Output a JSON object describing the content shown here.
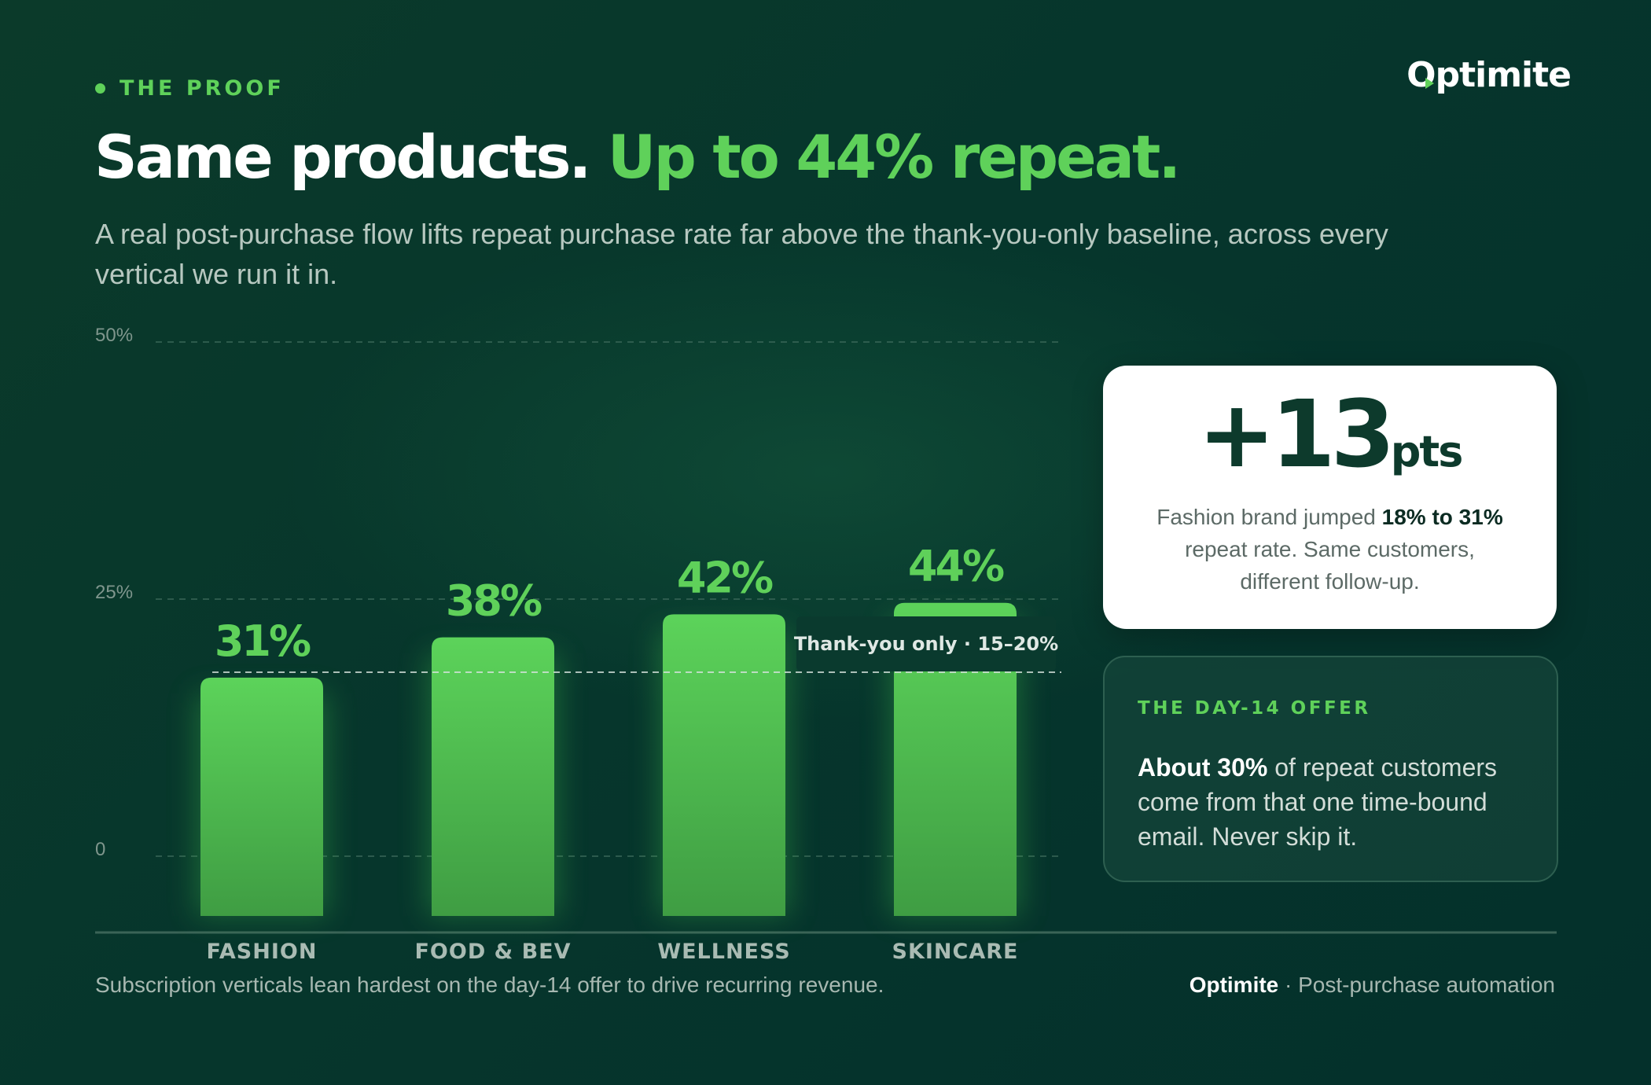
{
  "header": {
    "eyebrow": "THE PROOF",
    "logo": "Optimite",
    "title_white": "Same products.",
    "title_accent": "Up to 44% repeat.",
    "subtitle": "A real post-purchase flow lifts repeat purchase rate far above the thank-you-only baseline, across every vertical we run it in."
  },
  "colors": {
    "accent": "#5fd15a",
    "background": "#06362c",
    "card": "#ffffff",
    "text_dark": "#0d3a2c"
  },
  "chart_data": {
    "type": "bar",
    "categories": [
      "FASHION",
      "FOOD & BEV",
      "WELLNESS",
      "SKINCARE"
    ],
    "values": [
      31,
      38,
      42,
      44
    ],
    "data_labels": [
      "31%",
      "38%",
      "42%",
      "44%"
    ],
    "y_ticks": [
      {
        "value": 0,
        "label": "0"
      },
      {
        "value": 25,
        "label": "25%"
      },
      {
        "value": 50,
        "label": "50%"
      }
    ],
    "ylim": [
      0,
      50
    ],
    "grid": true,
    "baseline": {
      "value": 17.5,
      "label": "Thank-you only · 15–20%"
    }
  },
  "stat_card": {
    "number": "+13",
    "unit": "pts",
    "desc_before": "Fashion brand jumped ",
    "desc_bold": "18% to 31%",
    "desc_after": " repeat rate. Same customers, different follow-up."
  },
  "offer_card": {
    "kicker": "THE DAY-14 OFFER",
    "bold": "About 30%",
    "text": " of repeat customers come from that one time-bound email. Never skip it."
  },
  "footer": {
    "note": "Subscription verticals lean hardest on the day-14 offer to drive recurring revenue.",
    "brand": "Optimite",
    "tagline": " · Post-purchase automation"
  }
}
